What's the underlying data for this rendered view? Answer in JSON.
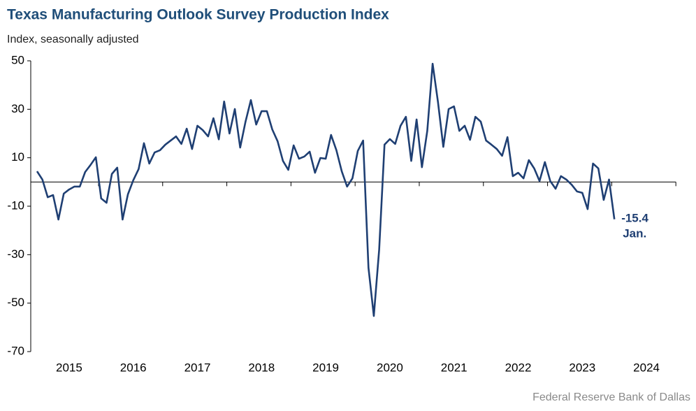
{
  "chart_data": {
    "type": "line",
    "title": "Texas Manufacturing Outlook Survey Production Index",
    "subtitle": "Index, seasonally adjusted",
    "source": "Federal Reserve Bank of Dallas",
    "annotation": "Jan.",
    "categories": [
      null,
      null,
      null,
      null,
      null,
      null,
      "2015",
      null,
      null,
      null,
      null,
      null,
      null,
      null,
      null,
      null,
      null,
      null,
      "2016",
      null,
      null,
      null,
      null,
      null,
      null,
      null,
      null,
      null,
      null,
      null,
      "2017",
      null,
      null,
      null,
      null,
      null,
      null,
      null,
      null,
      null,
      null,
      null,
      "2018",
      null,
      null,
      null,
      null,
      null,
      null,
      null,
      null,
      null,
      null,
      null,
      "2019",
      null,
      null,
      null,
      null,
      null,
      null,
      null,
      null,
      null,
      null,
      null,
      "2020",
      null,
      null,
      null,
      null,
      null,
      null,
      null,
      null,
      null,
      null,
      null,
      "2021",
      null,
      null,
      null,
      null,
      null,
      null,
      null,
      null,
      null,
      null,
      null,
      "2022",
      null,
      null,
      null,
      null,
      null,
      null,
      null,
      null,
      null,
      null,
      null,
      "2023",
      null,
      null,
      null,
      null,
      null,
      null,
      null,
      null,
      null,
      null,
      null,
      "2024",
      null,
      null,
      null,
      null,
      null
    ],
    "series": [
      {
        "color": "#1f3f73",
        "values": [
          4.4,
          1.0,
          -6.3,
          -5.4,
          -15.5,
          -4.8,
          -3.1,
          -1.9,
          -1.9,
          4.1,
          7.0,
          10.2,
          -6.8,
          -8.6,
          3.3,
          5.9,
          -15.5,
          -5.1,
          0.7,
          5.3,
          16.0,
          7.6,
          12.2,
          13.1,
          15.4,
          17.1,
          18.8,
          15.7,
          22.0,
          13.6,
          23.2,
          21.4,
          18.8,
          26.3,
          17.6,
          33.2,
          20.0,
          30.1,
          14.2,
          24.9,
          33.8,
          23.7,
          29.2,
          29.2,
          21.7,
          16.8,
          8.7,
          5.0,
          15.1,
          9.6,
          10.5,
          12.5,
          3.8,
          9.9,
          9.6,
          19.4,
          13.1,
          4.4,
          -1.9,
          1.5,
          12.8,
          17.1,
          -35.4,
          -55.3,
          -27.9,
          15.4,
          17.7,
          15.7,
          23.2,
          26.9,
          8.7,
          25.8,
          6.1,
          21.1,
          48.8,
          33.0,
          14.5,
          30.1,
          31.2,
          21.1,
          23.2,
          17.4,
          26.9,
          24.9,
          17.1,
          15.4,
          13.6,
          10.8,
          18.5,
          2.4,
          3.8,
          1.5,
          9.0,
          5.6,
          0.4,
          8.2,
          0.4,
          -2.8,
          2.4,
          1.0,
          -1.1,
          -3.9,
          -4.5,
          -11.2,
          7.6,
          5.6,
          -7.4,
          1.0,
          -15.4,
          null,
          null,
          null,
          null,
          null,
          null,
          null,
          null,
          null,
          null,
          null
        ]
      }
    ],
    "ylim": [
      -70,
      50
    ],
    "yticks": [
      50,
      30,
      10,
      -10,
      -30,
      -50,
      -70
    ]
  }
}
